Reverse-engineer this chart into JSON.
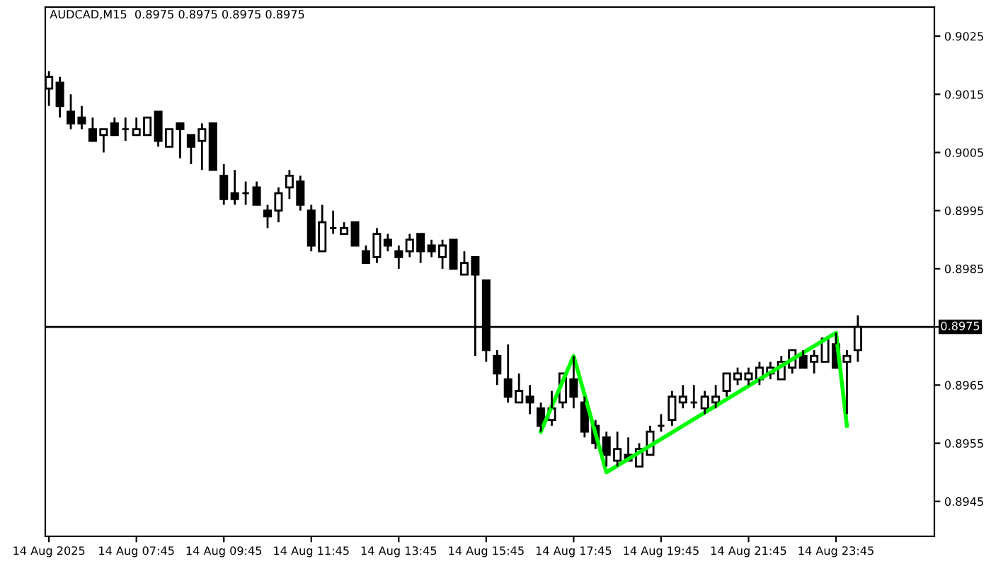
{
  "chart_data": {
    "type": "candlestick",
    "title": "AUDCAD,M15  0.8975 0.8975 0.8975 0.8975",
    "x": [
      "2025-08-14T05:45",
      "2025-08-14T06:00",
      "2025-08-14T06:15",
      "2025-08-14T06:30",
      "2025-08-14T06:45",
      "2025-08-14T07:00",
      "2025-08-14T07:15",
      "2025-08-14T07:30",
      "2025-08-14T07:45",
      "2025-08-14T08:00",
      "2025-08-14T08:15",
      "2025-08-14T08:30",
      "2025-08-14T08:45",
      "2025-08-14T09:00",
      "2025-08-14T09:15",
      "2025-08-14T09:30",
      "2025-08-14T09:45",
      "2025-08-14T10:00",
      "2025-08-14T10:15",
      "2025-08-14T10:30",
      "2025-08-14T10:45",
      "2025-08-14T11:00",
      "2025-08-14T11:15",
      "2025-08-14T11:30",
      "2025-08-14T11:45",
      "2025-08-14T12:00",
      "2025-08-14T12:15",
      "2025-08-14T12:30",
      "2025-08-14T12:45",
      "2025-08-14T13:00",
      "2025-08-14T13:15",
      "2025-08-14T13:30",
      "2025-08-14T13:45",
      "2025-08-14T14:00",
      "2025-08-14T14:15",
      "2025-08-14T14:30",
      "2025-08-14T14:45",
      "2025-08-14T15:00",
      "2025-08-14T15:15",
      "2025-08-14T15:30",
      "2025-08-14T15:45",
      "2025-08-14T16:00",
      "2025-08-14T16:15",
      "2025-08-14T16:30",
      "2025-08-14T16:45",
      "2025-08-14T17:00",
      "2025-08-14T17:15",
      "2025-08-14T17:30",
      "2025-08-14T17:45",
      "2025-08-14T18:00",
      "2025-08-14T18:15",
      "2025-08-14T18:30",
      "2025-08-14T18:45",
      "2025-08-14T19:00",
      "2025-08-14T19:15",
      "2025-08-14T19:30",
      "2025-08-14T19:45",
      "2025-08-14T20:00",
      "2025-08-14T20:15",
      "2025-08-14T20:30",
      "2025-08-14T20:45",
      "2025-08-14T21:00",
      "2025-08-14T21:15",
      "2025-08-14T21:30",
      "2025-08-14T21:45",
      "2025-08-14T22:00",
      "2025-08-14T22:15",
      "2025-08-14T22:30",
      "2025-08-14T22:45",
      "2025-08-14T23:00",
      "2025-08-14T23:15",
      "2025-08-14T23:30",
      "2025-08-14T23:45",
      "2025-08-15T00:00",
      "2025-08-15T00:15"
    ],
    "xlim": [
      "2025-08-14T05:40",
      "2025-08-15T02:00"
    ],
    "xticks": [
      {
        "value": "2025-08-14T05:45",
        "label": "14 Aug 2025"
      },
      {
        "value": "2025-08-14T07:45",
        "label": "14 Aug 07:45"
      },
      {
        "value": "2025-08-14T09:45",
        "label": "14 Aug 09:45"
      },
      {
        "value": "2025-08-14T11:45",
        "label": "14 Aug 11:45"
      },
      {
        "value": "2025-08-14T13:45",
        "label": "14 Aug 13:45"
      },
      {
        "value": "2025-08-14T15:45",
        "label": "14 Aug 15:45"
      },
      {
        "value": "2025-08-14T17:45",
        "label": "14 Aug 17:45"
      },
      {
        "value": "2025-08-14T19:45",
        "label": "14 Aug 19:45"
      },
      {
        "value": "2025-08-14T21:45",
        "label": "14 Aug 21:45"
      },
      {
        "value": "2025-08-14T23:45",
        "label": "14 Aug 23:45"
      }
    ],
    "ohlc": [
      [
        0.9016,
        0.9019,
        0.9013,
        0.9018
      ],
      [
        0.9017,
        0.9018,
        0.9011,
        0.9013
      ],
      [
        0.9012,
        0.9015,
        0.9009,
        0.901
      ],
      [
        0.9011,
        0.9013,
        0.9009,
        0.901
      ],
      [
        0.9009,
        0.9011,
        0.9007,
        0.9007
      ],
      [
        0.9008,
        0.9009,
        0.9005,
        0.9009
      ],
      [
        0.901,
        0.9011,
        0.9008,
        0.9008
      ],
      [
        0.9009,
        0.9011,
        0.9007,
        0.9009
      ],
      [
        0.9008,
        0.9011,
        0.9008,
        0.9009
      ],
      [
        0.9008,
        0.9011,
        0.9008,
        0.9011
      ],
      [
        0.9012,
        0.9012,
        0.9006,
        0.9007
      ],
      [
        0.9006,
        0.9009,
        0.9006,
        0.9009
      ],
      [
        0.901,
        0.901,
        0.9004,
        0.9009
      ],
      [
        0.9008,
        0.9008,
        0.9003,
        0.9006
      ],
      [
        0.9007,
        0.901,
        0.9002,
        0.9009
      ],
      [
        0.901,
        0.901,
        0.9002,
        0.9002
      ],
      [
        0.9001,
        0.9003,
        0.8996,
        0.8997
      ],
      [
        0.8998,
        0.9002,
        0.8996,
        0.8997
      ],
      [
        0.8998,
        0.9,
        0.8996,
        0.8998
      ],
      [
        0.8999,
        0.9,
        0.8996,
        0.8996
      ],
      [
        0.8995,
        0.8996,
        0.8992,
        0.8994
      ],
      [
        0.8995,
        0.8999,
        0.8993,
        0.8998
      ],
      [
        0.8999,
        0.9002,
        0.8997,
        0.9001
      ],
      [
        0.9,
        0.9001,
        0.8995,
        0.8996
      ],
      [
        0.8995,
        0.8996,
        0.8988,
        0.8989
      ],
      [
        0.8988,
        0.8996,
        0.8988,
        0.8993
      ],
      [
        0.8992,
        0.8995,
        0.8991,
        0.8992
      ],
      [
        0.8991,
        0.8993,
        0.8991,
        0.8992
      ],
      [
        0.8993,
        0.8993,
        0.8989,
        0.8989
      ],
      [
        0.8988,
        0.8989,
        0.8986,
        0.8986
      ],
      [
        0.8987,
        0.8992,
        0.8986,
        0.8991
      ],
      [
        0.899,
        0.8991,
        0.8988,
        0.8989
      ],
      [
        0.8988,
        0.8989,
        0.8985,
        0.8987
      ],
      [
        0.8988,
        0.8991,
        0.8987,
        0.899
      ],
      [
        0.8991,
        0.8991,
        0.8986,
        0.8988
      ],
      [
        0.8989,
        0.899,
        0.8987,
        0.8988
      ],
      [
        0.8987,
        0.899,
        0.8985,
        0.8989
      ],
      [
        0.899,
        0.899,
        0.8985,
        0.8985
      ],
      [
        0.8984,
        0.8988,
        0.8984,
        0.8986
      ],
      [
        0.8987,
        0.8987,
        0.897,
        0.8984
      ],
      [
        0.8983,
        0.8983,
        0.8969,
        0.8971
      ],
      [
        0.897,
        0.8971,
        0.8965,
        0.8967
      ],
      [
        0.8966,
        0.8972,
        0.8962,
        0.8963
      ],
      [
        0.8962,
        0.8967,
        0.8962,
        0.8964
      ],
      [
        0.8963,
        0.8965,
        0.896,
        0.8962
      ],
      [
        0.8961,
        0.8962,
        0.8957,
        0.8958
      ],
      [
        0.8959,
        0.8964,
        0.8958,
        0.8961
      ],
      [
        0.8962,
        0.8967,
        0.8961,
        0.8967
      ],
      [
        0.8966,
        0.897,
        0.8961,
        0.8963
      ],
      [
        0.8962,
        0.8963,
        0.8956,
        0.8957
      ],
      [
        0.8958,
        0.8959,
        0.8954,
        0.8955
      ],
      [
        0.8956,
        0.8957,
        0.8951,
        0.8953
      ],
      [
        0.8952,
        0.8957,
        0.8951,
        0.8954
      ],
      [
        0.8953,
        0.8956,
        0.8952,
        0.8952
      ],
      [
        0.8951,
        0.8955,
        0.8951,
        0.8954
      ],
      [
        0.8953,
        0.8958,
        0.8953,
        0.8957
      ],
      [
        0.8958,
        0.896,
        0.8957,
        0.8958
      ],
      [
        0.8959,
        0.8964,
        0.8958,
        0.8963
      ],
      [
        0.8962,
        0.8965,
        0.8961,
        0.8963
      ],
      [
        0.8962,
        0.8965,
        0.8961,
        0.8962
      ],
      [
        0.8961,
        0.8964,
        0.896,
        0.8963
      ],
      [
        0.8962,
        0.8965,
        0.8961,
        0.8963
      ],
      [
        0.8964,
        0.8967,
        0.8963,
        0.8967
      ],
      [
        0.8966,
        0.8968,
        0.8965,
        0.8967
      ],
      [
        0.8966,
        0.8968,
        0.8965,
        0.8967
      ],
      [
        0.8966,
        0.8969,
        0.8965,
        0.8968
      ],
      [
        0.8967,
        0.8969,
        0.8966,
        0.8968
      ],
      [
        0.8966,
        0.897,
        0.8966,
        0.8969
      ],
      [
        0.8968,
        0.8971,
        0.8967,
        0.8971
      ],
      [
        0.897,
        0.8971,
        0.8968,
        0.8968
      ],
      [
        0.8969,
        0.8971,
        0.8967,
        0.897
      ],
      [
        0.8969,
        0.8973,
        0.8969,
        0.8973
      ],
      [
        0.8972,
        0.8974,
        0.8968,
        0.8968
      ],
      [
        0.8969,
        0.8971,
        0.896,
        0.897
      ],
      [
        0.8971,
        0.8977,
        0.8969,
        0.8975
      ]
    ],
    "series": [
      {
        "type": "line",
        "color": "#00ff00",
        "x": [
          "2025-08-14T17:00",
          "2025-08-14T17:45",
          "2025-08-14T18:30",
          "2025-08-14T23:45",
          "2025-08-15T00:00"
        ],
        "values": [
          0.8957,
          0.897,
          0.895,
          0.8974,
          0.8958
        ]
      }
    ],
    "ylim": [
      0.8939,
      0.903
    ],
    "yticks": [
      0.8945,
      0.8955,
      0.8965,
      {
        "value": 0.8975,
        "label": null
      },
      0.8985,
      0.8995,
      0.9005,
      0.9015,
      0.9025
    ],
    "ref_lines": [
      {
        "axis": "y",
        "value": 0.8975,
        "label": "0.8975",
        "color": "#000000"
      }
    ],
    "grid": false,
    "legend": false
  }
}
